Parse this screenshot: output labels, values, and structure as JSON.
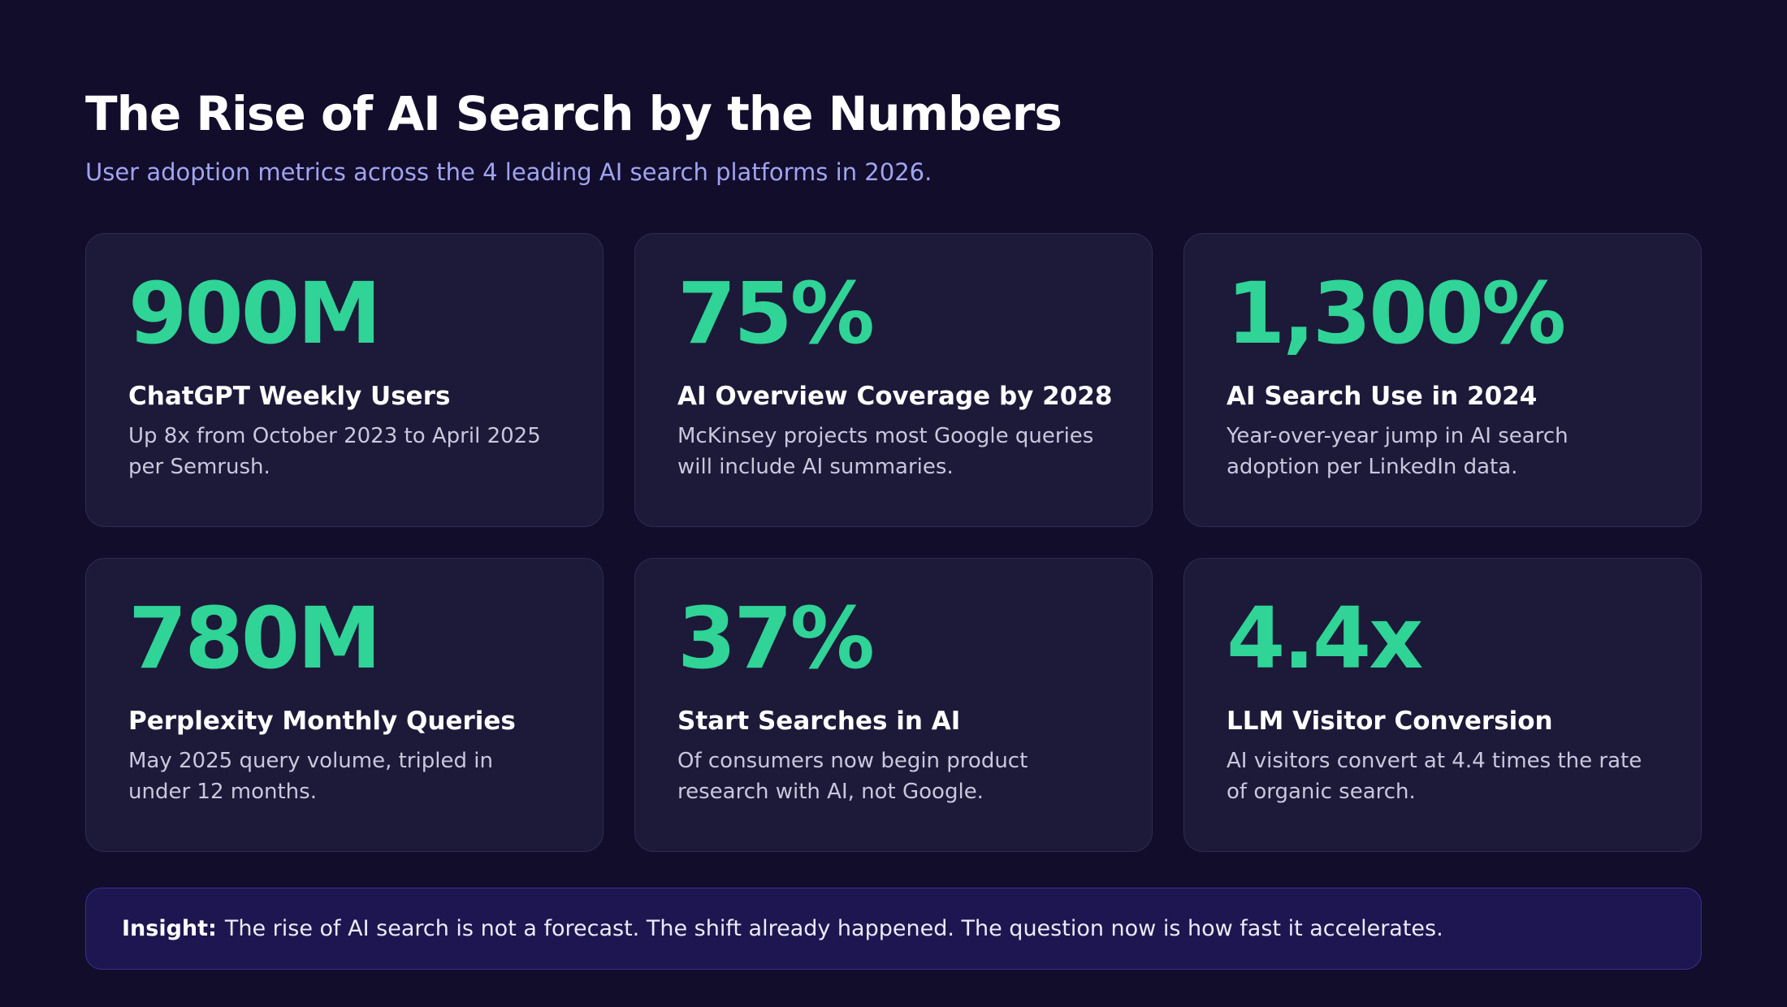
{
  "header": {
    "title": "The Rise of AI Search by the Numbers",
    "subtitle": "User adoption metrics across the 4 leading AI search platforms in 2026."
  },
  "stats": [
    {
      "value": "900M",
      "label": "ChatGPT Weekly Users",
      "description": "Up 8x from October 2023 to April 2025 per Semrush."
    },
    {
      "value": "75%",
      "label": "AI Overview Coverage by 2028",
      "description": "McKinsey projects most Google queries will include AI summaries."
    },
    {
      "value": "1,300%",
      "label": "AI Search Use in 2024",
      "description": "Year-over-year jump in AI search adoption per LinkedIn data."
    },
    {
      "value": "780M",
      "label": "Perplexity Monthly Queries",
      "description": "May 2025 query volume, tripled in under 12 months."
    },
    {
      "value": "37%",
      "label": "Start Searches in AI",
      "description": "Of consumers now begin product research with AI, not Google."
    },
    {
      "value": "4.4x",
      "label": "LLM Visitor Conversion",
      "description": "AI visitors convert at 4.4 times the rate of organic search."
    }
  ],
  "insight": {
    "label": "Insight:",
    "text": "The rise of AI search is not a forecast. The shift already happened. The question now is how fast it accelerates."
  },
  "colors": {
    "background": "#110d2b",
    "card_background": "#1d1939",
    "accent_green": "#2fd496",
    "subtitle_purple": "#a1a4f0",
    "insight_background": "#1d1650"
  }
}
